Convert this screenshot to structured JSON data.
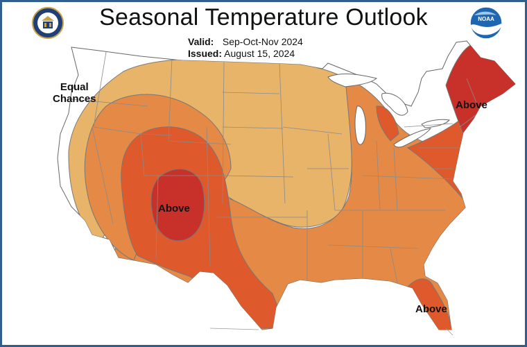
{
  "title": "Seasonal Temperature Outlook",
  "valid": {
    "label": "Valid:",
    "value": "Sep-Oct-Nov 2024"
  },
  "issued": {
    "label": "Issued:",
    "value": "August 15, 2024"
  },
  "labels": {
    "equal_chances_line1": "Equal",
    "equal_chances_line2": "Chances",
    "above_southwest": "Above",
    "above_northeast": "Above",
    "above_florida": "Above"
  },
  "logos": {
    "left": "commerce-seal-icon",
    "right": "noaa-logo-icon",
    "noaa_text": "NOAA"
  },
  "colors": {
    "equal_chances": "#ffffff",
    "above_33_40": "#e8b46a",
    "above_40_50": "#e58a46",
    "above_50_60": "#de5a2c",
    "above_60_70": "#c8302a",
    "border": "#2f5f8f"
  }
}
